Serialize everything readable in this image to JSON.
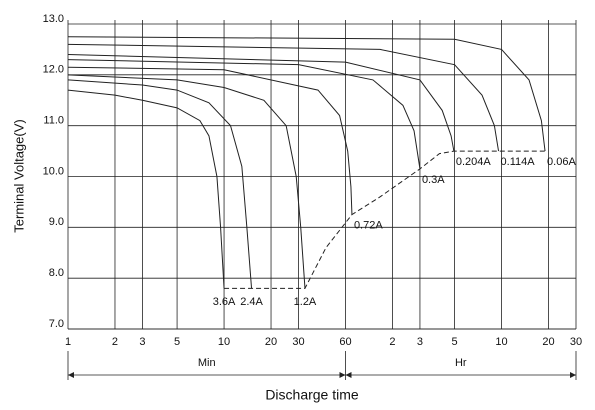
{
  "chart_data": {
    "type": "line",
    "x_label": "Discharge time",
    "y_label": "Terminal Voltage(V)",
    "x_groups": [
      "Min",
      "Hr"
    ],
    "xscale": "log",
    "xlim": [
      1,
      1800
    ],
    "ylim": [
      7,
      13
    ],
    "xticks": [
      1,
      2,
      3,
      5,
      10,
      20,
      30,
      60,
      {
        "value": 120,
        "label": "2"
      },
      {
        "value": 180,
        "label": "3"
      },
      {
        "value": 300,
        "label": "5"
      },
      {
        "value": 600,
        "label": "10"
      },
      {
        "value": 1200,
        "label": "20"
      },
      {
        "value": 1800,
        "label": "30"
      }
    ],
    "yticks": [
      {
        "value": 7,
        "label": "7.0"
      },
      {
        "value": 8,
        "label": "8.0"
      },
      {
        "value": 9,
        "label": "9.0"
      },
      {
        "value": 10,
        "label": "10.0"
      },
      {
        "value": 11,
        "label": "11.0"
      },
      {
        "value": 12,
        "label": "12.0"
      },
      {
        "value": 13,
        "label": "13.0"
      }
    ],
    "grid": true,
    "color": "#222222",
    "series": [
      {
        "name": "3.6A",
        "x": [
          1,
          2,
          3,
          5,
          7,
          8,
          9,
          9.5,
          10
        ],
        "values": [
          11.7,
          11.6,
          11.5,
          11.35,
          11.1,
          10.8,
          10.0,
          9.0,
          7.8
        ]
      },
      {
        "name": "2.4A",
        "x": [
          1,
          3,
          5,
          8,
          11,
          13,
          14,
          15
        ],
        "values": [
          11.9,
          11.8,
          11.7,
          11.45,
          11.0,
          10.2,
          9.0,
          7.8
        ]
      },
      {
        "name": "1.2A",
        "x": [
          1,
          5,
          10,
          18,
          25,
          29,
          31,
          33
        ],
        "values": [
          12.0,
          11.9,
          11.75,
          11.5,
          11.0,
          10.0,
          9.0,
          7.8
        ]
      },
      {
        "name": "0.72A",
        "x": [
          1,
          10,
          40,
          55,
          62,
          65,
          66
        ],
        "values": [
          12.15,
          12.1,
          11.7,
          11.2,
          10.5,
          9.8,
          9.25
        ]
      },
      {
        "name": "0.3A",
        "x": [
          1,
          30,
          90,
          140,
          165,
          180
        ],
        "values": [
          12.3,
          12.2,
          11.9,
          11.4,
          10.9,
          10.15
        ]
      },
      {
        "name": "0.204A",
        "x": [
          1,
          60,
          180,
          250,
          285,
          297
        ],
        "values": [
          12.4,
          12.25,
          11.9,
          11.3,
          10.8,
          10.5
        ]
      },
      {
        "name": "0.114A",
        "x": [
          1,
          100,
          300,
          450,
          540,
          574
        ],
        "values": [
          12.6,
          12.5,
          12.2,
          11.6,
          11.0,
          10.5
        ]
      },
      {
        "name": "0.06A",
        "x": [
          1,
          300,
          600,
          900,
          1080,
          1140
        ],
        "values": [
          12.75,
          12.7,
          12.5,
          11.9,
          11.1,
          10.5
        ]
      }
    ],
    "envelope": {
      "style": "dashed",
      "x": [
        10,
        33,
        45,
        66,
        100,
        180,
        240,
        297,
        574,
        1140
      ],
      "values": [
        7.8,
        7.8,
        8.6,
        9.25,
        9.6,
        10.15,
        10.45,
        10.5,
        10.5,
        10.5
      ]
    }
  }
}
